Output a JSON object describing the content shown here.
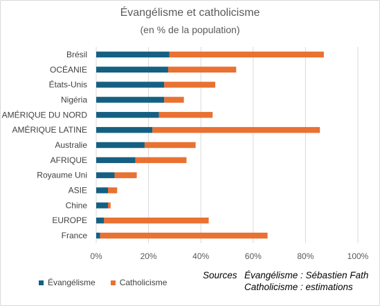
{
  "chart_data": {
    "type": "bar",
    "orientation": "horizontal",
    "stacked": true,
    "title": "Évangélisme et catholicisme",
    "subtitle": "(en % de la population)",
    "categories": [
      "Brésil",
      "OCÉANIE",
      "États-Unis",
      "Nigéria",
      "AMÉRIQUE DU NORD",
      "AMÉRIQUE LATINE",
      "Australie",
      "AFRIQUE",
      "Royaume Uni",
      "ASIE",
      "Chine",
      "EUROPE",
      "France"
    ],
    "series": [
      {
        "name": "Évangélisme",
        "color": "#156082",
        "values": [
          28,
          27.5,
          26,
          26,
          24,
          21.5,
          18.5,
          15,
          7,
          4.5,
          4.5,
          3,
          1.5
        ]
      },
      {
        "name": "Catholicisme",
        "color": "#E97132",
        "values": [
          59,
          26,
          19.5,
          7.5,
          20.5,
          64,
          19.5,
          19.5,
          8.5,
          3.5,
          1,
          40,
          64
        ]
      }
    ],
    "xlim": [
      0,
      100
    ],
    "x_ticks": [
      "0%",
      "20%",
      "40%",
      "60%",
      "80%",
      "100%"
    ],
    "x_tick_values": [
      0,
      20,
      40,
      60,
      80,
      100
    ],
    "grid": true,
    "legend": "bottom-left"
  },
  "sources": {
    "label": "Sources",
    "line1": "Évangélisme : Sébastien Fath",
    "line2": "Catholicisme : estimations"
  }
}
